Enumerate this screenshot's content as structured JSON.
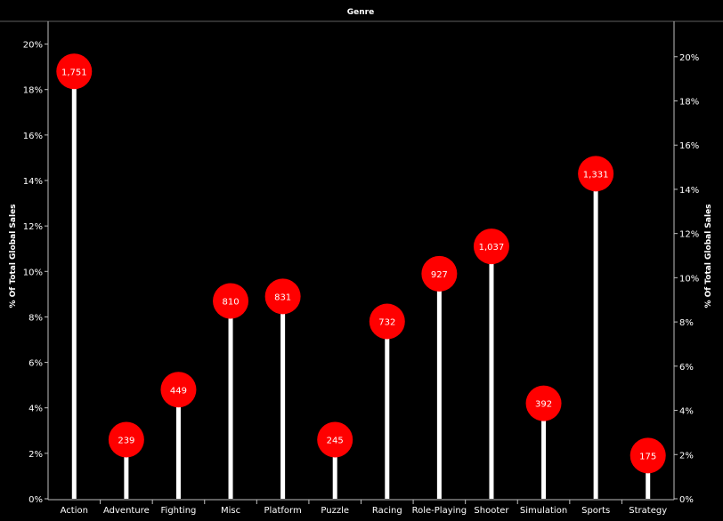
{
  "chart_data": {
    "type": "lollipop",
    "header": "Genre",
    "ylabel_left": "% Of Total Global Sales",
    "ylabel_right": "% Of Total Global Sales",
    "categories": [
      "Action",
      "Adventure",
      "Fighting",
      "Misc",
      "Platform",
      "Puzzle",
      "Racing",
      "Role-Playing",
      "Shooter",
      "Simulation",
      "Sports",
      "Strategy"
    ],
    "values": [
      18.8,
      2.6,
      4.8,
      8.7,
      8.9,
      2.6,
      7.8,
      9.9,
      11.1,
      4.2,
      14.3,
      1.9
    ],
    "data_labels": [
      "1,751",
      "239",
      "449",
      "810",
      "831",
      "245",
      "732",
      "927",
      "1,037",
      "392",
      "1,331",
      "175"
    ],
    "left_axis": {
      "ylim": [
        0,
        21
      ],
      "ticks": [
        0,
        2,
        4,
        6,
        8,
        10,
        12,
        14,
        16,
        18,
        20
      ],
      "tick_labels": [
        "0%",
        "2%",
        "4%",
        "6%",
        "8%",
        "10%",
        "12%",
        "14%",
        "16%",
        "18%",
        "20%"
      ]
    },
    "right_axis": {
      "ylim": [
        0,
        21.6
      ],
      "ticks": [
        0,
        2,
        4,
        6,
        8,
        10,
        12,
        14,
        16,
        18,
        20
      ],
      "tick_labels": [
        "0%",
        "2%",
        "4%",
        "6%",
        "8%",
        "10%",
        "12%",
        "14%",
        "16%",
        "18%",
        "20%"
      ]
    },
    "grid": false,
    "colors": {
      "background": "#000000",
      "stem": "#ffffff",
      "circle": "#ff0000",
      "text": "#ffffff",
      "axis": "#bfbfbf"
    }
  }
}
